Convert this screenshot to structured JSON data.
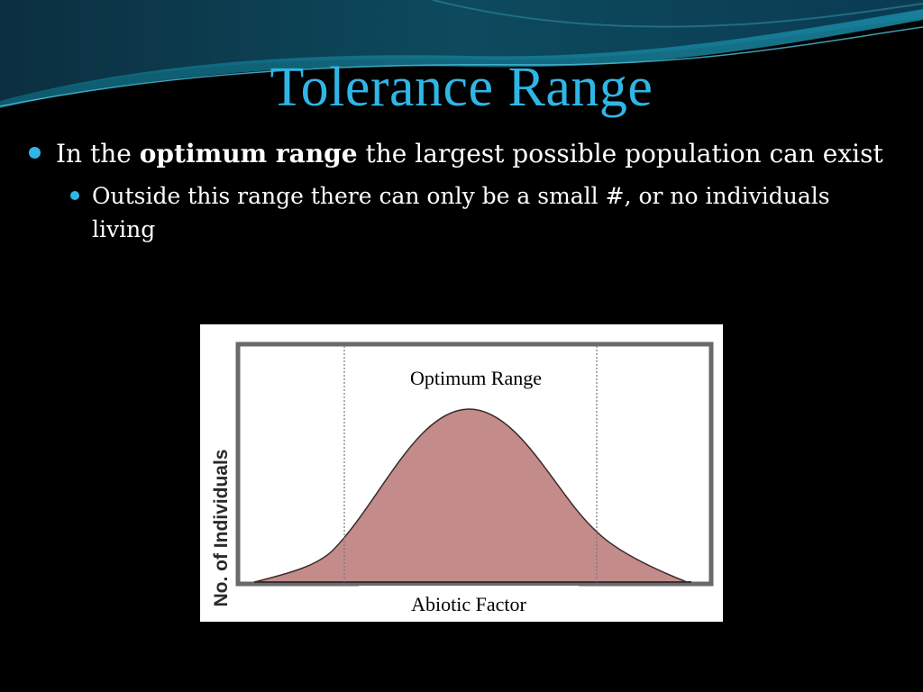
{
  "slide": {
    "title": "Tolerance Range",
    "bullet1": {
      "prefix": "In the ",
      "bold": "optimum range",
      "suffix": " the largest possible population can exist"
    },
    "bullet2": "Outside this range there can only be a small #, or no individuals living"
  },
  "figure": {
    "ylabel": "No. of Individuals",
    "xlabel": "Abiotic Factor",
    "region_label": "Optimum Range"
  },
  "colors": {
    "accent": "#2fb6e6",
    "curve_fill": "#c48b8b",
    "background": "#000000"
  }
}
